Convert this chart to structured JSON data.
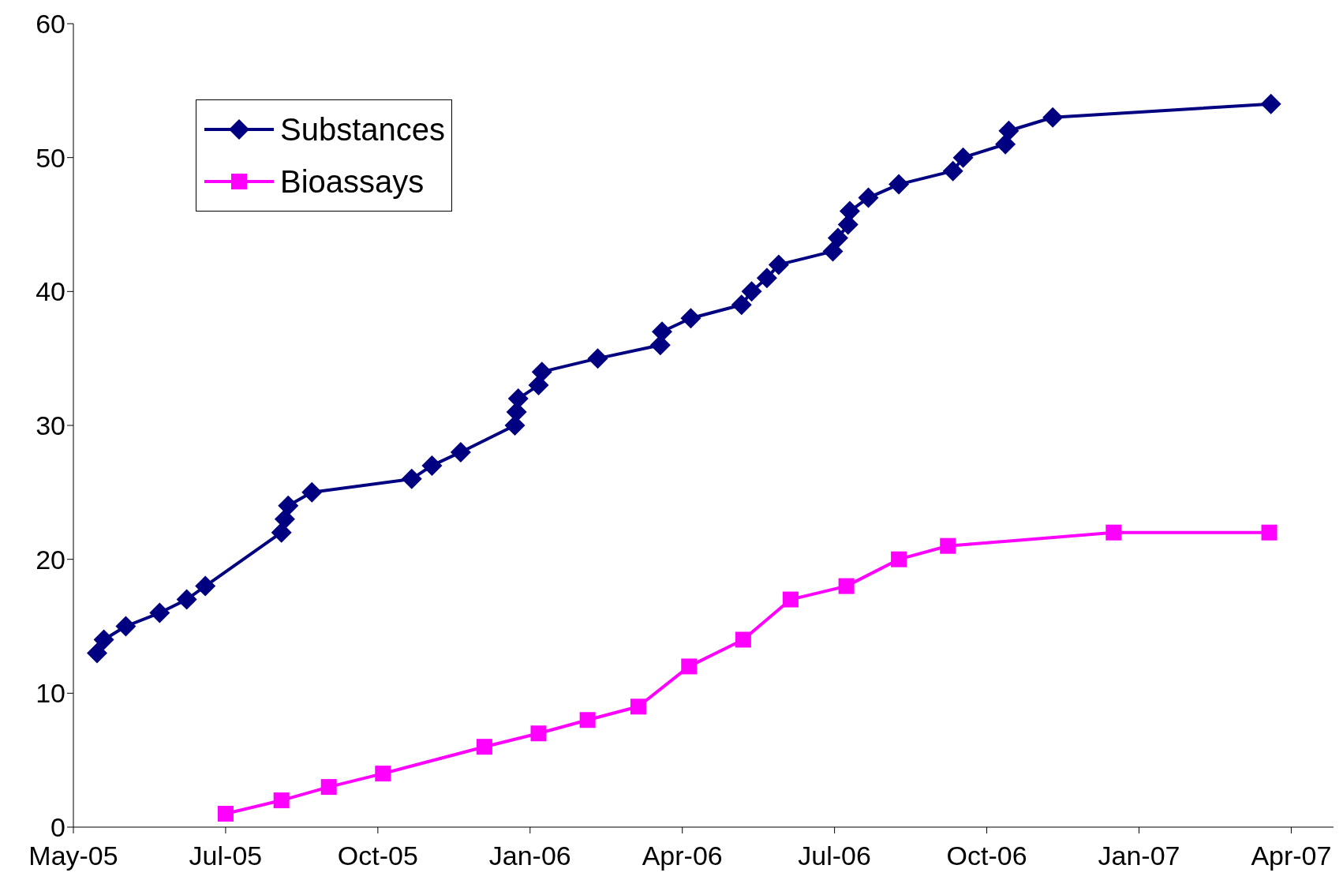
{
  "chart_data": {
    "type": "line",
    "series": [
      {
        "name": "Substances",
        "color": "#000080",
        "marker": "diamond",
        "x": [
          "2005-05-15",
          "2005-05-19",
          "2005-06-01",
          "2005-06-21",
          "2005-07-07",
          "2005-07-18",
          "2005-09-01",
          "2005-09-03",
          "2005-09-05",
          "2005-09-19",
          "2005-11-17",
          "2005-11-29",
          "2005-12-16",
          "2006-01-17",
          "2006-01-18",
          "2006-01-19",
          "2006-01-31",
          "2006-02-02",
          "2006-03-07",
          "2006-04-13",
          "2006-04-14",
          "2006-05-01",
          "2006-05-31",
          "2006-06-06",
          "2006-06-15",
          "2006-06-22",
          "2006-07-24",
          "2006-07-27",
          "2006-08-02",
          "2006-08-03",
          "2006-08-14",
          "2006-09-01",
          "2006-10-03",
          "2006-10-09",
          "2006-11-03",
          "2006-11-05",
          "2006-12-01",
          "2007-04-09"
        ],
        "values": [
          13,
          14,
          15,
          16,
          17,
          18,
          22,
          23,
          24,
          25,
          26,
          27,
          28,
          30,
          31,
          32,
          33,
          34,
          35,
          36,
          37,
          38,
          39,
          40,
          41,
          42,
          43,
          44,
          45,
          46,
          47,
          48,
          49,
          50,
          51,
          52,
          53,
          54
        ]
      },
      {
        "name": "Bioassays",
        "color": "#ff00ff",
        "marker": "square",
        "x": [
          "2005-07-30",
          "2005-09-01",
          "2005-09-29",
          "2005-10-31",
          "2005-12-30",
          "2006-01-31",
          "2006-03-01",
          "2006-03-31",
          "2006-04-30",
          "2006-06-01",
          "2006-06-29",
          "2006-08-01",
          "2006-09-01",
          "2006-09-30",
          "2007-01-06",
          "2007-04-08"
        ],
        "values": [
          1,
          2,
          3,
          4,
          6,
          7,
          8,
          9,
          12,
          14,
          17,
          18,
          20,
          21,
          22,
          22
        ]
      }
    ],
    "xlim": [
      "2005-05-01",
      "2007-05-16"
    ],
    "xticks": [
      {
        "value": "2005-05-01",
        "label": "May-05"
      },
      {
        "value": "2005-07-30",
        "label": "Jul-05"
      },
      {
        "value": "2005-10-28",
        "label": "Oct-05"
      },
      {
        "value": "2006-01-26",
        "label": "Jan-06"
      },
      {
        "value": "2006-04-26",
        "label": "Apr-06"
      },
      {
        "value": "2006-07-25",
        "label": "Jul-06"
      },
      {
        "value": "2006-10-23",
        "label": "Oct-06"
      },
      {
        "value": "2007-01-21",
        "label": "Jan-07"
      },
      {
        "value": "2007-04-21",
        "label": "Apr-07"
      }
    ],
    "ylim": [
      0,
      60
    ],
    "yticks": [
      0,
      10,
      20,
      30,
      40,
      50,
      60
    ],
    "grid": false,
    "legend": "top left",
    "line_style": "solid"
  }
}
